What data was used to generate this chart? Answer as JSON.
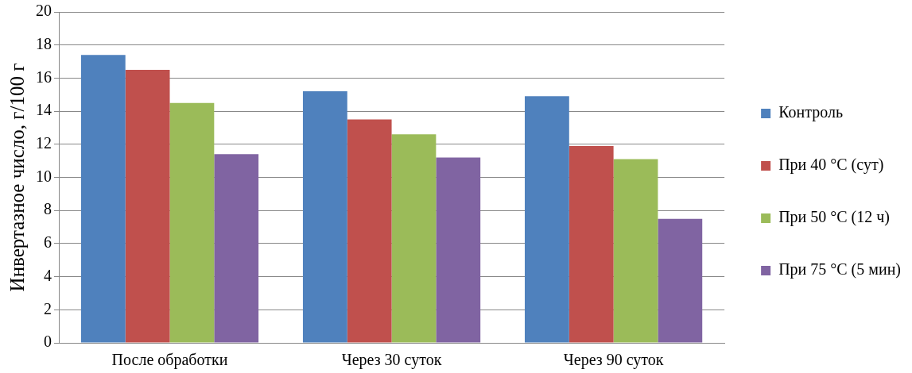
{
  "chart_data": {
    "type": "bar",
    "ylabel": "Инвертазное число, г/100 г",
    "categories": [
      "После обработки",
      "Через 30 суток",
      "Через 90 суток"
    ],
    "series": [
      {
        "name": "Контроль",
        "color": "#4f81bd",
        "values": [
          17.4,
          15.2,
          14.9
        ]
      },
      {
        "name": "При 40 °С (сут)",
        "color": "#c0504d",
        "values": [
          16.5,
          13.5,
          11.9
        ]
      },
      {
        "name": "При 50 °С (12 ч)",
        "color": "#9bbb59",
        "values": [
          14.5,
          12.6,
          11.1
        ]
      },
      {
        "name": "При 75 °С (5 мин)",
        "color": "#8064a2",
        "values": [
          11.4,
          11.2,
          7.5
        ]
      }
    ],
    "ylim": [
      0,
      20
    ],
    "yticks": [
      0,
      2,
      4,
      6,
      8,
      10,
      12,
      14,
      16,
      18,
      20
    ],
    "grid": "y",
    "legend": "right"
  }
}
